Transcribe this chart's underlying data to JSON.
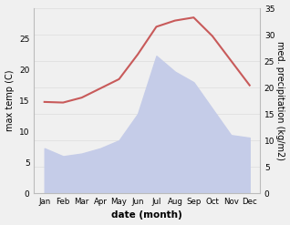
{
  "months": [
    "Jan",
    "Feb",
    "Mar",
    "Apr",
    "May",
    "Jun",
    "Jul",
    "Aug",
    "Sep",
    "Oct",
    "Nov",
    "Dec"
  ],
  "temperature": [
    14.8,
    14.7,
    15.5,
    17.0,
    18.5,
    22.5,
    27.0,
    28.0,
    28.5,
    25.5,
    21.5,
    17.5
  ],
  "precipitation": [
    8.5,
    7.0,
    7.5,
    8.5,
    10.0,
    15.0,
    26.0,
    23.0,
    21.0,
    16.0,
    11.0,
    10.5
  ],
  "temp_color": "#c85a5a",
  "precip_fill_color": "#c5cce8",
  "temp_ylim": [
    0,
    30
  ],
  "precip_ylim": [
    0,
    35
  ],
  "temp_yticks": [
    0,
    5,
    10,
    15,
    20,
    25
  ],
  "precip_yticks": [
    0,
    5,
    10,
    15,
    20,
    25,
    30,
    35
  ],
  "ylabel_left": "max temp (C)",
  "ylabel_right": "med. precipitation (kg/m2)",
  "xlabel": "date (month)",
  "bg_color": "#f0f0f0",
  "plot_bg_color": "#ffffff"
}
